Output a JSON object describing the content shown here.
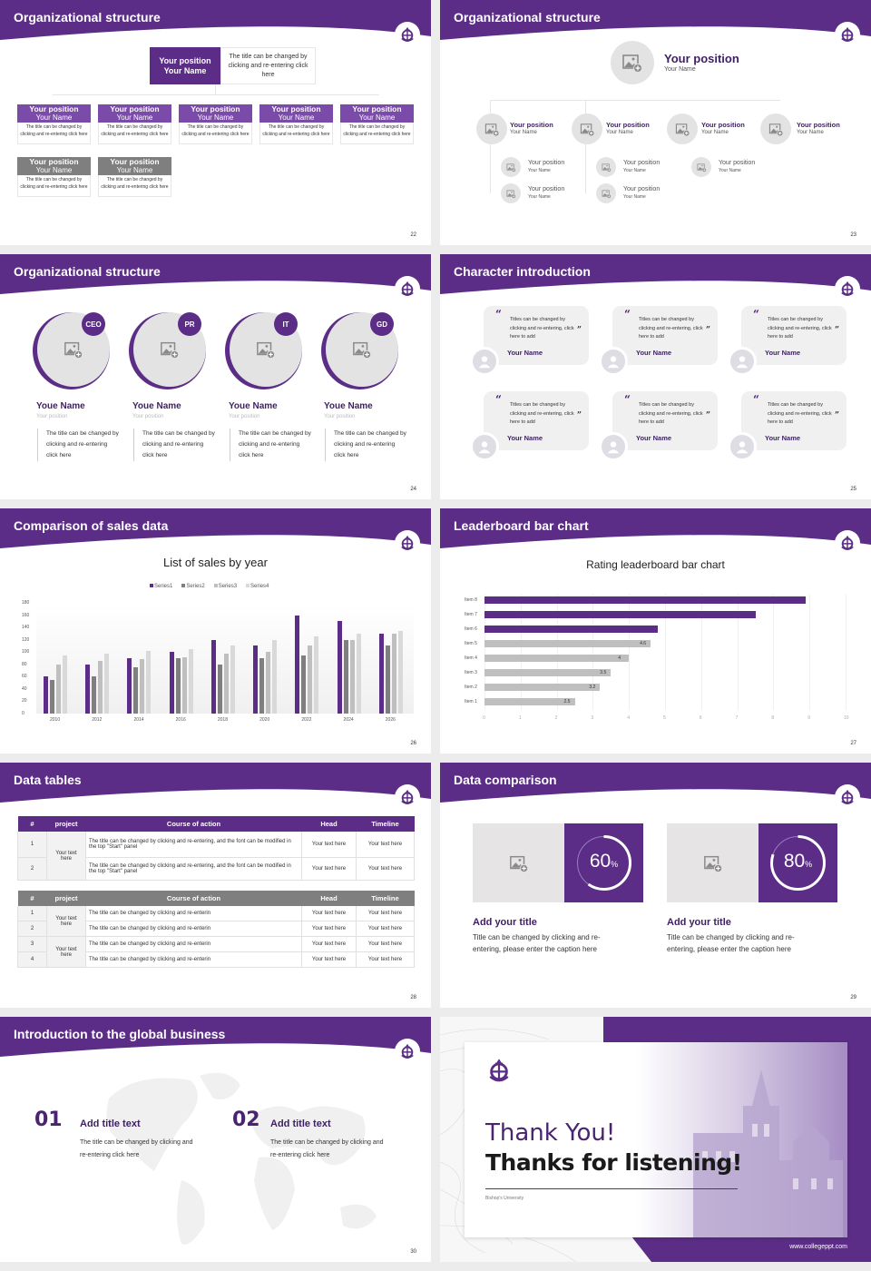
{
  "colors": {
    "brand": "#5b2d86",
    "brand_light": "#7a4ba8",
    "gray_header": "#7f7f7f",
    "placeholder": "#e3e3e3"
  },
  "slides": {
    "s22": {
      "title": "Organizational structure",
      "page": "22",
      "top": {
        "position": "Your position",
        "name": "Your Name",
        "desc": "The title can be changed by clicking and re-entering click here"
      },
      "cards": [
        {
          "position": "Your position",
          "name": "Your Name",
          "desc": "The title can be changed by clicking and re-entering click here",
          "style": "purple"
        },
        {
          "position": "Your position",
          "name": "Your Name",
          "desc": "The title can be changed by clicking and re-entering click here",
          "style": "purple"
        },
        {
          "position": "Your position",
          "name": "Your Name",
          "desc": "The title can be changed by clicking and re-entering click here",
          "style": "purple"
        },
        {
          "position": "Your position",
          "name": "Your Name",
          "desc": "The title can be changed by clicking and re-entering click here",
          "style": "purple"
        },
        {
          "position": "Your position",
          "name": "Your Name",
          "desc": "The title can be changed by clicking and re-entering click here",
          "style": "purple"
        },
        {
          "position": "Your position",
          "name": "Your Name",
          "desc": "The title can be changed by clicking and re-entering click here",
          "style": "gray"
        },
        {
          "position": "Your position",
          "name": "Your Name",
          "desc": "The title can be changed by clicking and re-entering click here",
          "style": "gray"
        }
      ]
    },
    "s23": {
      "title": "Organizational structure",
      "page": "23",
      "top": {
        "position": "Your position",
        "name": "Your Name"
      },
      "level1": [
        {
          "position": "Your position",
          "name": "Your Name"
        },
        {
          "position": "Your position",
          "name": "Your Name"
        },
        {
          "position": "Your position",
          "name": "Your Name"
        },
        {
          "position": "Your position",
          "name": "Your Name"
        }
      ],
      "level2": [
        {
          "position": "Your position",
          "name": "Your Name"
        },
        {
          "position": "Your position",
          "name": "Your Name"
        },
        {
          "position": "Your position",
          "name": "Your Name"
        },
        {
          "position": "Your position",
          "name": "Your Name"
        },
        {
          "position": "Your position",
          "name": "Your Name"
        }
      ]
    },
    "s24": {
      "title": "Organizational structure",
      "page": "24",
      "people": [
        {
          "badge": "CEO",
          "name": "Youe Name",
          "position": "Your position",
          "desc": "The title can be changed by clicking and re-entering click here"
        },
        {
          "badge": "PR",
          "name": "Youe Name",
          "position": "Your position",
          "desc": "The title can be changed by clicking and re-entering click here"
        },
        {
          "badge": "IT",
          "name": "Youe Name",
          "position": "Your position",
          "desc": "The title can be changed by clicking and re-entering click here"
        },
        {
          "badge": "GD",
          "name": "Youe Name",
          "position": "Your position",
          "desc": "The title can be changed by clicking and re-entering click here"
        }
      ]
    },
    "s25": {
      "title": "Character introduction",
      "page": "25",
      "cards": [
        {
          "quote": "Titles can be changed by clicking and re-entering, click here to add",
          "name": "Your Name"
        },
        {
          "quote": "Titles can be changed by clicking and re-entering, click here to add",
          "name": "Your Name"
        },
        {
          "quote": "Titles can be changed by clicking and re-entering, click here to add",
          "name": "Your Name"
        },
        {
          "quote": "Titles can be changed by clicking and re-entering, click here to add",
          "name": "Your Name"
        },
        {
          "quote": "Titles can be changed by clicking and re-entering, click here to add",
          "name": "Your Name"
        },
        {
          "quote": "Titles can be changed by clicking and re-entering, click here to add",
          "name": "Your Name"
        }
      ],
      "open_quote": "“",
      "close_quote": "”"
    },
    "s26": {
      "title": "Comparison of sales data",
      "page": "26"
    },
    "s27": {
      "title": "Leaderboard bar chart",
      "page": "27"
    },
    "s28": {
      "title": "Data tables",
      "page": "28",
      "headers": [
        "#",
        "project",
        "Course of action",
        "Head",
        "Timeline"
      ],
      "table1": {
        "project": "Your text here",
        "rows": [
          {
            "num": "1",
            "action": "The title can be changed by clicking and re-entering, and the font can be modified in the top \"Start\" panel",
            "head": "Your text here",
            "timeline": "Your text here"
          },
          {
            "num": "2",
            "action": "The title can be changed by clicking and re-entering, and the font can be modified in the top \"Start\" panel",
            "head": "Your text here",
            "timeline": "Your text here"
          }
        ]
      },
      "table2": {
        "projects": [
          "Your text here",
          "Your text here"
        ],
        "rows": [
          {
            "num": "1",
            "action": "The title can be changed by clicking and re-enterin",
            "head": "Your text here",
            "timeline": "Your text here"
          },
          {
            "num": "2",
            "action": "The title can be changed by clicking and re-enterin",
            "head": "Your text here",
            "timeline": "Your text here"
          },
          {
            "num": "3",
            "action": "The title can be changed by clicking and re-enterin",
            "head": "Your text here",
            "timeline": "Your text here"
          },
          {
            "num": "4",
            "action": "The title can be changed by clicking and re-enterin",
            "head": "Your text here",
            "timeline": "Your text here"
          }
        ]
      }
    },
    "s29": {
      "title": "Data comparison",
      "page": "29",
      "items": [
        {
          "percent": "60",
          "unit": "%",
          "title": "Add your title",
          "desc": "Title can be changed by clicking and re-entering, please enter the caption here"
        },
        {
          "percent": "80",
          "unit": "%",
          "title": "Add your title",
          "desc": "Title can be changed by clicking and re-entering, please enter the caption here"
        }
      ]
    },
    "s30": {
      "title": "Introduction to the global business",
      "page": "30",
      "items": [
        {
          "num": "01",
          "title": "Add title text",
          "desc": "The title can be changed by clicking and re-entering click here"
        },
        {
          "num": "02",
          "title": "Add title text",
          "desc": "The title can be changed by clicking and re-entering click here"
        }
      ]
    },
    "s31": {
      "thank": "Thank You!",
      "thanks": "Thanks for listening!",
      "university": "Bishop's University",
      "website": "www.collegeppt.com"
    }
  },
  "chart_data": [
    {
      "type": "bar",
      "title": "List of sales by year",
      "xlabel": "",
      "ylabel": "",
      "categories": [
        "2010",
        "2012",
        "2014",
        "2016",
        "2018",
        "2020",
        "2022",
        "2024",
        "2026"
      ],
      "series": [
        {
          "name": "Series1",
          "color": "#5b2d86",
          "values": [
            60,
            80,
            90,
            100,
            120,
            110,
            160,
            150,
            130
          ]
        },
        {
          "name": "Series2",
          "color": "#7f7f7f",
          "values": [
            55,
            60,
            75,
            90,
            80,
            90,
            95,
            120,
            110
          ]
        },
        {
          "name": "Series3",
          "color": "#bfbfbf",
          "values": [
            80,
            85,
            88,
            92,
            97,
            100,
            110,
            120,
            130
          ]
        },
        {
          "name": "Series4",
          "color": "#d9d9d9",
          "values": [
            95,
            98,
            102,
            105,
            110,
            120,
            125,
            130,
            135
          ]
        }
      ],
      "ylim": [
        0,
        180
      ],
      "yticks": [
        0,
        20,
        40,
        60,
        80,
        100,
        120,
        140,
        160,
        180
      ],
      "legend": "top",
      "grid": false
    },
    {
      "type": "bar",
      "orientation": "horizontal",
      "title": "Rating leaderboard bar chart",
      "categories": [
        "Item 1",
        "Item 2",
        "Item 3",
        "Item 4",
        "Item 5",
        "Item 6",
        "Item 7",
        "Item 8"
      ],
      "values": [
        2.5,
        3.2,
        3.5,
        4,
        4.6,
        4.8,
        7.5,
        8.9
      ],
      "labels": [
        "2.5",
        "3.2",
        "3.5",
        "4",
        "4.6",
        "",
        "",
        ""
      ],
      "colors": [
        "#bfbfbf",
        "#bfbfbf",
        "#bfbfbf",
        "#bfbfbf",
        "#bfbfbf",
        "#5b2d86",
        "#5b2d86",
        "#5b2d86"
      ],
      "xlim": [
        0,
        10
      ],
      "xticks": [
        0,
        1,
        2,
        3,
        4,
        5,
        6,
        7,
        8,
        9,
        10
      ],
      "grid": true
    }
  ]
}
